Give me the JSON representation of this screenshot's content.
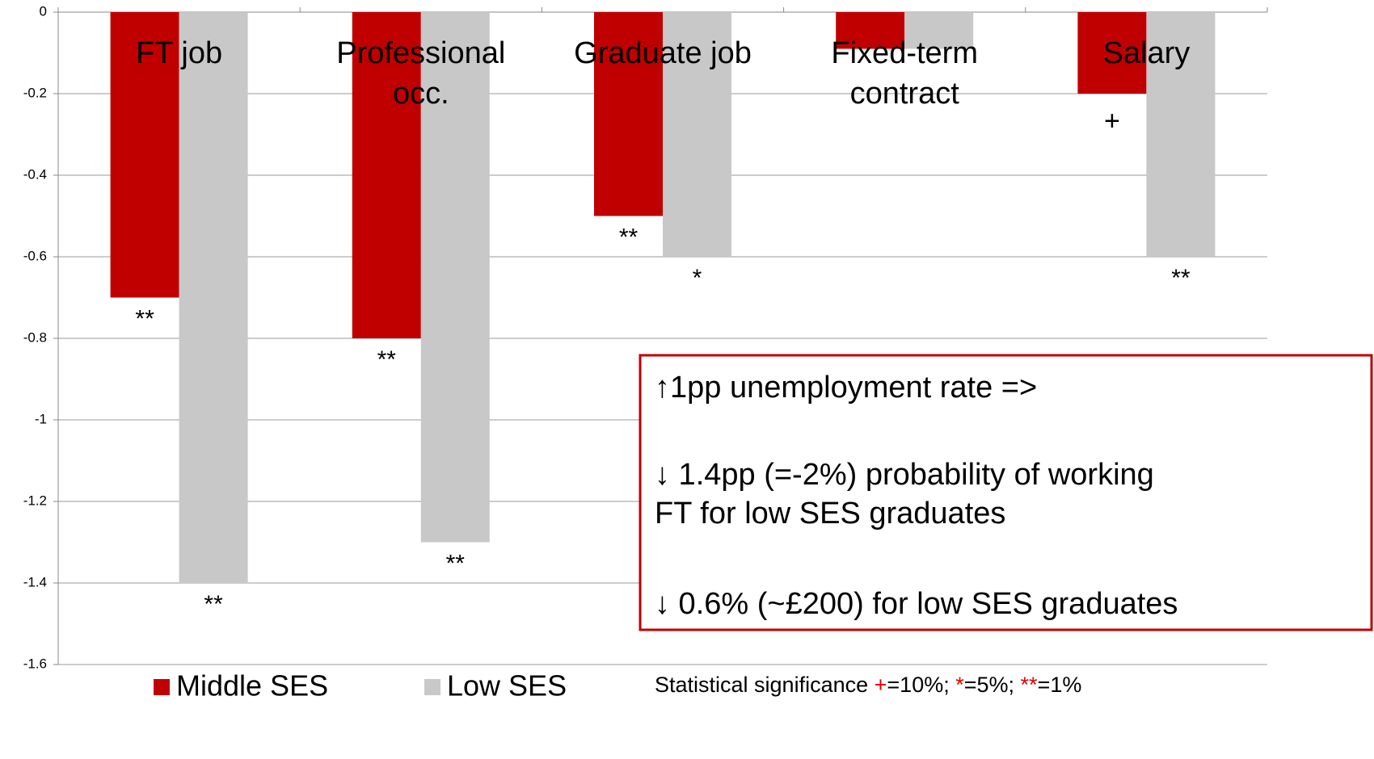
{
  "chart_data": {
    "type": "bar",
    "categories": [
      [
        "FT job"
      ],
      [
        "Professional",
        "occ."
      ],
      [
        "Graduate job"
      ],
      [
        "Fixed-term",
        "contract"
      ],
      [
        "Salary"
      ]
    ],
    "series": [
      {
        "name": "Middle SES",
        "color": "#c00000",
        "values": [
          -0.7,
          -0.8,
          -0.5,
          -0.09,
          -0.2
        ],
        "significance": [
          "**",
          "**",
          "**",
          null,
          "+"
        ]
      },
      {
        "name": "Low SES",
        "color": "#c8c8c8",
        "values": [
          -1.4,
          -1.3,
          -0.6,
          -0.09,
          -0.6
        ],
        "significance": [
          "**",
          "**",
          "*",
          null,
          "**"
        ]
      }
    ],
    "ylim": [
      -1.6,
      0
    ],
    "yticks": [
      0,
      -0.2,
      -0.4,
      -0.6,
      -0.8,
      -1,
      -1.2,
      -1.4,
      -1.6
    ],
    "grid": true,
    "textbox": {
      "lines": [
        "↑1pp unemployment rate =>",
        "↓ 1.4pp (=-2%) probability of working",
        "FT for low SES graduates",
        "↓ 0.6% (~£200) for low SES graduates"
      ],
      "border_color": "#c00000"
    },
    "footnote": [
      {
        "text": "Statistical significance ",
        "color": "#000000"
      },
      {
        "text": "+",
        "color": "#e00000"
      },
      {
        "text": "=10%; ",
        "color": "#000000"
      },
      {
        "text": "*",
        "color": "#e00000"
      },
      {
        "text": "=5%; ",
        "color": "#000000"
      },
      {
        "text": "**",
        "color": "#e00000"
      },
      {
        "text": "=1%",
        "color": "#000000"
      }
    ]
  }
}
